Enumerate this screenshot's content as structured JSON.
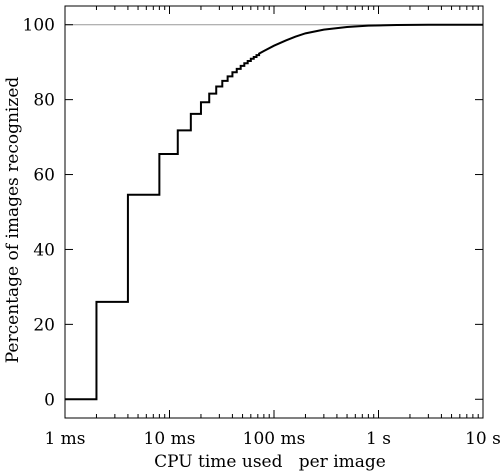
{
  "chart_data": {
    "type": "line",
    "xlabel": "CPU time used   per image",
    "ylabel": "Percentage of images recognized",
    "xscale": "log",
    "xlim": [
      0.001,
      10
    ],
    "ylim": [
      -5,
      105
    ],
    "grid": false,
    "reference_line": {
      "y": 100,
      "color": "#999999"
    },
    "x_ticks": [
      {
        "value": 0.001,
        "label": "1 ms"
      },
      {
        "value": 0.01,
        "label": "10 ms"
      },
      {
        "value": 0.1,
        "label": "100 ms"
      },
      {
        "value": 1,
        "label": "1 s"
      },
      {
        "value": 10,
        "label": "10 s"
      }
    ],
    "y_ticks": [
      {
        "value": 0,
        "label": "0"
      },
      {
        "value": 20,
        "label": "20"
      },
      {
        "value": 40,
        "label": "40"
      },
      {
        "value": 60,
        "label": "60"
      },
      {
        "value": 80,
        "label": "80"
      },
      {
        "value": 100,
        "label": "100"
      }
    ],
    "series": [
      {
        "line_style": "step",
        "color": "#000000",
        "steps": [
          {
            "x": 0.001,
            "y": 0
          },
          {
            "x": 0.002,
            "y": 26.0
          },
          {
            "x": 0.004,
            "y": 54.6
          },
          {
            "x": 0.008,
            "y": 65.5
          },
          {
            "x": 0.012,
            "y": 71.8
          },
          {
            "x": 0.016,
            "y": 76.2
          },
          {
            "x": 0.02,
            "y": 79.3
          },
          {
            "x": 0.024,
            "y": 81.6
          },
          {
            "x": 0.028,
            "y": 83.5
          },
          {
            "x": 0.032,
            "y": 85.0
          },
          {
            "x": 0.036,
            "y": 86.2
          },
          {
            "x": 0.04,
            "y": 87.3
          },
          {
            "x": 0.044,
            "y": 88.2
          },
          {
            "x": 0.048,
            "y": 89.0
          },
          {
            "x": 0.052,
            "y": 89.7
          },
          {
            "x": 0.056,
            "y": 90.3
          },
          {
            "x": 0.06,
            "y": 90.9
          },
          {
            "x": 0.064,
            "y": 91.4
          },
          {
            "x": 0.068,
            "y": 91.9
          },
          {
            "x": 0.072,
            "y": 92.3
          }
        ],
        "curve": [
          {
            "x": 0.08,
            "y": 93.0
          },
          {
            "x": 0.1,
            "y": 94.4
          },
          {
            "x": 0.13,
            "y": 95.8
          },
          {
            "x": 0.16,
            "y": 96.8
          },
          {
            "x": 0.2,
            "y": 97.7
          },
          {
            "x": 0.3,
            "y": 98.7
          },
          {
            "x": 0.5,
            "y": 99.4
          },
          {
            "x": 0.8,
            "y": 99.75
          },
          {
            "x": 1.5,
            "y": 99.92
          },
          {
            "x": 3,
            "y": 99.98
          },
          {
            "x": 10,
            "y": 100
          }
        ]
      }
    ]
  }
}
